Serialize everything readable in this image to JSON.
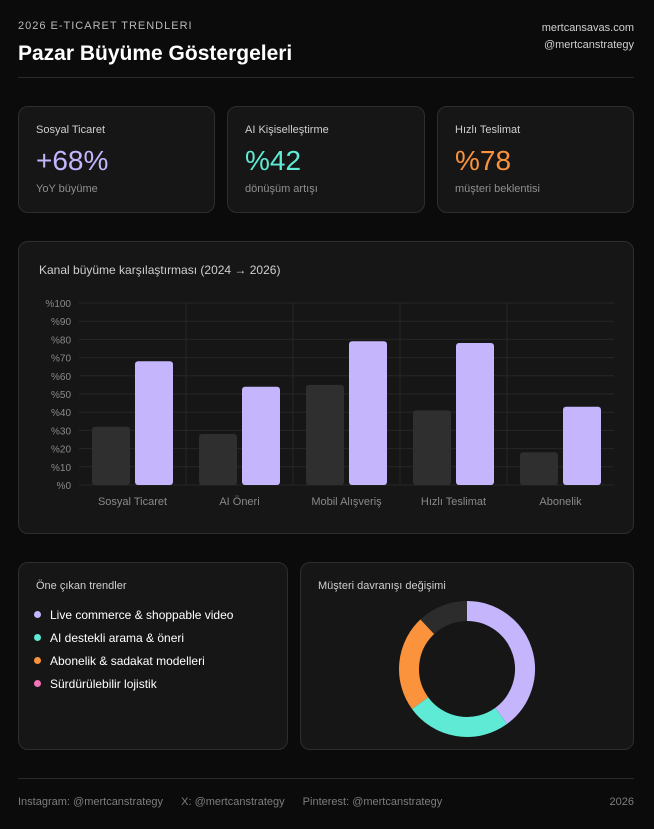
{
  "header": {
    "eyebrow": "2026 E-TICARET TRENDLERI",
    "title": "Pazar Büyüme Göstergeleri",
    "website": "mertcansavas.com",
    "handle": "@mertcanstrategy"
  },
  "stats": [
    {
      "label": "Sosyal Ticaret",
      "value": "+68%",
      "sub": "YoY büyüme",
      "color": "#c4b5fd"
    },
    {
      "label": "AI Kişiselleştirme",
      "value": "%42",
      "sub": "dönüşüm artışı",
      "color": "#5eead4"
    },
    {
      "label": "Hızlı Teslimat",
      "value": "%78",
      "sub": "müşteri beklentisi",
      "color": "#fb923c"
    }
  ],
  "chart_data": [
    {
      "type": "bar",
      "title": "Kanal büyüme karşılaştırması (2024 → 2026)",
      "categories": [
        "Sosyal Ticaret",
        "AI Öneri",
        "Mobil Alışveriş",
        "Hızlı Teslimat",
        "Abonelik"
      ],
      "series": [
        {
          "values": [
            32,
            28,
            55,
            41,
            18
          ],
          "color": "#2f2f2f"
        },
        {
          "values": [
            68,
            54,
            79,
            78,
            43
          ],
          "color": "#c4b5fd"
        }
      ],
      "yticks": [
        "%0",
        "%10",
        "%20",
        "%30",
        "%40",
        "%50",
        "%60",
        "%70",
        "%80",
        "%90",
        "%100"
      ],
      "ylim": [
        0,
        100
      ],
      "grid": true,
      "legend": "none"
    },
    {
      "type": "pie",
      "title": "Müşteri davranışı değişimi",
      "values": [
        40,
        25,
        23,
        12
      ],
      "colors": [
        "#c4b5fd",
        "#5eead4",
        "#fb923c",
        "#2c2c2c"
      ]
    }
  ],
  "trends": {
    "title": "Öne çıkan trendler",
    "items": [
      {
        "label": "Live commerce & shoppable video",
        "color": "#c4b5fd"
      },
      {
        "label": "AI destekli arama & öneri",
        "color": "#5eead4"
      },
      {
        "label": "Abonelik & sadakat modelleri",
        "color": "#fb923c"
      },
      {
        "label": "Sürdürülebilir lojistik",
        "color": "#f472b6"
      }
    ]
  },
  "footer": {
    "instagram": "Instagram: @mertcanstrategy",
    "x": "X: @mertcanstrategy",
    "pinterest": "Pinterest: @mertcanstrategy",
    "year": "2026"
  }
}
